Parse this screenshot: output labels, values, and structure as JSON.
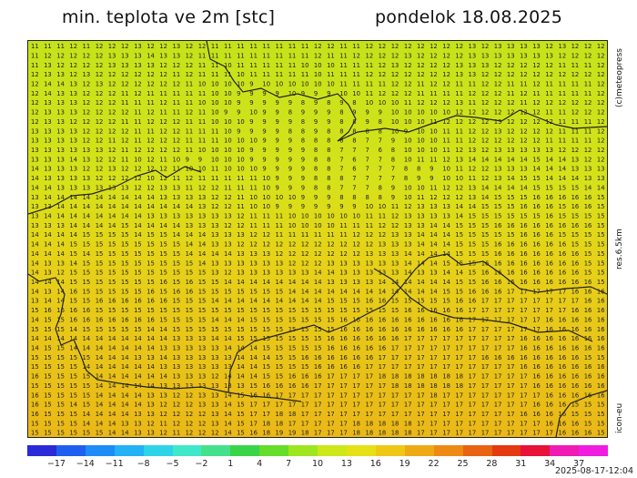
{
  "header": {
    "title_left": "min. teplota ve 2m [stc]",
    "title_right": "pondelok 18.08.2025"
  },
  "sidebar_labels": {
    "brand": "(c)meteopress",
    "resolution": "res.6.5km",
    "model": "icon-eu"
  },
  "timestamp": "2025-08-17-12:04",
  "legend": {
    "tick_labels": [
      "−17",
      "−14",
      "−11",
      "−8",
      "−5",
      "−2",
      "1",
      "4",
      "7",
      "10",
      "13",
      "16",
      "19",
      "22",
      "25",
      "28",
      "31",
      "34",
      "37"
    ],
    "colors": [
      "#2a2ad8",
      "#1f5fef",
      "#1e8cf7",
      "#22b2f5",
      "#2ed3e8",
      "#3fe8c8",
      "#44e08c",
      "#3ad44a",
      "#66dd2a",
      "#9ee61f",
      "#cce818",
      "#e6e016",
      "#eec815",
      "#eeaa14",
      "#ec8a13",
      "#e86412",
      "#e43a12",
      "#e81238",
      "#ee1cb4",
      "#f01ce0"
    ]
  },
  "map": {
    "grid_values": [
      "11 11 11 12 11 12 12 12 13 12 12 13 12 12 11 11 11 11 11 11 11 11 12 12 11 11 12 12 12 12 12 12 12 12 13 12 13 13 13 13 12 13 12 12 12",
      "11 12 12 12 12 12 13 13 13 14 13 13 12 11 11 11 11 11 11 11 11 11 12 11 11 12 12 12 12 13 12 12 12 12 13 13 13 13 13 13 13 12 12 12 12",
      "11 13 12 12 12 12 13 13 13 13 12 12 12 11 11 10 11 11 11 11 11 10 10 10 11 11 11 12 13 12 12 12 12 13 13 13 12 12 12 12 12 11 11 11 12",
      "12 13 13 12 13 12 12 12 12 12 12 11 12 11 11 11 10 11 11 11 11 11 10 11 11 11 12 12 12 12 12 12 12 13 13 12 12 12 12 12 12 12 12 12 12",
      "12 14 14 13 12 13 12 12 12 12 12 12 11 10 10 10 10 9 10 10 10 10 10 10 11 11 11 11 12 12 11 12 12 11 11 12 12 11 11 12 11 11 11 11 12",
      "12 14 13 13 12 12 12 11 12 11 11 11 11 11 10 10 9 9 9 9 10 9 9 9 10 10 11 12 12 12 11 11 11 11 12 12 12 11 12 11 11 11 11 11 12",
      "12 13 13 13 12 12 12 11 11 11 12 11 11 10 10 10 9 9 9 9 9 8 9 8 9 8 10 10 10 11 12 12 12 13 11 12 12 12 11 12 12 12 12 12 12",
      "12 13 13 13 12 12 12 12 11 12 11 11 12 11 10 9 9 10 9 9 8 9 9 9 8 9 9 9 10 10 10 10 10 12 12 12 12 12 12 12 11 11 12 12 12",
      "12 13 13 12 12 12 12 11 11 12 12 12 11 11 10 10 10 9 9 9 9 8 9 9 8 8 9 8 10 10 10 11 12 12 12 12 13 12 12 12 12 11 11 11 12",
      "13 13 13 13 12 12 12 12 11 11 12 12 11 11 11 10 9 9 9 9 8 8 9 8 8 8 8 8 10 9 10 10 11 11 12 12 13 12 12 12 12 11 11 11 12",
      "13 13 13 13 12 12 11 12 11 12 12 12 11 11 11 10 10 10 9 9 9 8 8 8 8 8 7 7 9 10 10 10 11 11 12 12 12 12 12 12 11 11 11 11 12",
      "13 13 13 13 13 13 12 11 12 12 12 12 11 10 10 10 10 9 9 9 9 9 8 8 7 7 7 6 8 10 10 10 11 12 13 12 13 13 13 13 13 12 12 12 12",
      "13 13 13 14 13 12 12 11 10 12 11 10 9 9 10 10 10 9 9 9 9 9 8 8 7 6 7 7 8 10 11 11 12 13 14 14 14 14 14 15 14 14 13 12 12",
      "14 13 13 13 12 12 13 12 12 12 12 11 10 10 11 10 10 10 9 9 9 9 8 8 7 6 7 7 7 8 8 9 10 11 12 12 13 13 13 14 14 14 13 13 13",
      "14 13 13 13 13 12 12 12 12 10 12 11 12 11 11 11 11 11 10 9 9 9 8 8 8 7 7 7 7 8 9 9 10 10 11 12 13 14 15 15 14 14 14 13 13",
      "14 14 13 13 13 13 13 13 12 12 13 13 11 12 12 11 11 11 10 9 9 9 8 8 7 7 7 8 9 10 10 11 12 12 13 14 14 14 14 15 15 15 15 14 14",
      "13 14 14 14 14 14 14 14 14 14 13 13 13 13 12 12 11 10 10 10 10 9 9 9 8 8 8 8 9 10 11 12 12 12 13 14 15 15 15 16 16 16 16 16 15",
      "13 13 14 14 14 14 14 14 14 14 14 14 14 13 12 12 11 10 10 9 9 9 9 9 9 9 10 10 11 12 13 13 13 14 14 15 15 15 16 16 16 15 16 16 15",
      "13 14 14 14 14 14 14 14 14 13 13 13 13 13 13 13 12 11 11 11 10 10 10 10 10 10 11 11 12 13 13 13 13 14 15 15 15 15 15 15 16 15 15 15 15",
      "13 13 13 14 14 14 14 15 14 14 14 14 13 13 13 12 12 11 11 11 10 10 10 10 11 11 11 12 12 13 13 14 14 15 15 15 16 16 16 16 16 16 16 16 15",
      "14 14 14 14 15 15 15 15 14 15 15 14 14 14 13 13 13 12 12 11 11 11 11 11 11 12 12 12 13 13 14 14 14 15 15 15 15 15 16 16 16 15 15 15 15",
      "14 14 14 15 15 15 15 15 15 15 15 15 14 14 13 13 12 12 12 12 12 12 12 12 12 12 12 13 13 13 14 14 14 15 15 15 16 16 16 16 16 16 15 15 15",
      "14 14 14 15 14 15 15 15 15 15 15 15 14 14 14 14 13 13 13 12 12 12 12 12 12 12 13 13 13 14 14 14 14 15 15 15 16 16 16 16 16 16 16 15 15",
      "14 13 13 14 15 15 15 15 15 15 15 15 15 14 13 13 13 13 13 13 12 12 12 13 13 13 13 13 13 14 14 14 15 15 15 16 16 16 16 16 16 16 16 15 15",
      "14 13 12 15 15 15 15 15 15 15 15 15 15 15 13 12 13 13 13 13 13 13 14 14 13 13 13 13 13 14 13 13 14 14 15 16 16 16 16 16 16 16 16 15 15",
      "14 14 14 15 15 15 15 15 15 15 16 15 16 15 15 14 14 14 14 14 14 14 14 13 13 13 13 14 14 14 14 14 14 15 15 16 16 16 16 16 16 16 16 16 15",
      "14 13 14 16 15 15 15 15 15 16 15 16 16 15 15 15 15 15 15 15 14 14 14 14 14 14 14 14 14 14 14 14 15 15 16 16 16 17 17 17 17 17 16 16 16",
      "13 14 14 15 15 16 16 16 16 16 16 15 15 15 14 14 14 14 14 14 14 14 14 15 15 15 16 16 15 15 15 15 15 16 16 17 17 17 17 17 17 17 17 16 16",
      "15 16 16 16 16 15 15 15 15 15 15 15 15 15 15 15 15 15 15 15 15 15 15 15 15 15 15 15 15 16 16 16 16 16 17 17 17 17 17 17 17 17 16 16 16",
      "14 15 15 16 16 16 16 16 16 16 15 15 15 15 14 14 14 15 15 15 15 15 15 15 16 16 16 16 16 16 16 16 16 16 17 17 17 17 17 17 16 16 16 16 16",
      "15 15 15 14 15 15 15 15 15 14 14 15 15 15 15 15 15 15 15 15 15 15 15 15 16 16 16 16 16 16 16 16 16 16 17 17 17 17 17 17 16 16 16 16 16",
      "14 14 14 14 14 14 14 14 14 14 14 13 13 13 14 14 15 15 15 15 15 15 15 16 16 16 16 16 16 17 17 17 17 17 17 17 17 17 16 16 16 16 16 16 16",
      "14 15 15 14 14 14 14 14 14 14 13 13 13 13 13 14 14 14 15 15 15 15 15 16 16 16 16 16 17 17 17 17 17 17 17 17 17 17 16 16 16 16 16 16 16",
      "15 15 15 15 15 14 14 14 13 13 14 13 13 13 13 13 14 14 14 15 15 16 16 16 16 16 16 17 17 17 17 17 17 17 17 16 16 16 16 16 16 16 16 15 15",
      "15 15 15 15 14 14 14 14 14 14 13 13 13 13 13 13 14 14 15 15 15 15 16 16 16 16 17 17 17 17 17 17 17 17 17 17 17 17 16 16 16 16 16 16 16",
      "16 15 15 15 15 14 14 14 14 14 14 13 13 13 12 14 14 14 15 15 16 16 16 17 17 17 17 18 18 18 18 18 18 18 17 17 17 17 17 16 16 16 16 16 16",
      "15 15 15 15 15 14 14 14 14 14 13 13 13 13 13 13 13 15 16 16 16 16 17 17 17 17 17 17 18 18 18 18 18 18 17 17 17 17 17 16 16 16 16 16 16",
      "16 15 15 15 15 14 14 14 14 13 13 12 12 13 13 14 15 16 16 17 17 17 17 17 17 17 17 17 17 17 17 18 17 17 17 17 17 17 17 17 16 16 16 16 16",
      "16 15 15 14 15 14 14 14 14 13 12 12 12 13 13 14 15 17 17 17 17 17 17 17 17 17 17 17 17 17 17 17 17 17 17 17 17 17 17 16 16 16 15 15 15",
      "16 15 15 15 14 14 14 14 13 13 12 12 12 12 13 14 15 17 17 18 18 17 17 17 17 17 17 17 17 17 17 17 17 17 17 17 17 17 16 16 16 16 15 15 15",
      "15 15 15 15 14 14 14 13 13 12 11 12 12 12 13 14 15 17 18 18 17 17 17 17 17 18 18 18 18 18 17 17 17 17 17 17 17 17 17 17 16 16 16 15 15",
      "15 15 15 15 15 15 14 14 13 13 12 11 12 12 12 14 15 16 18 19 19 18 17 17 17 18 18 18 18 18 17 17 17 17 17 17 17 17 17 17 17 16 16 16 15"
    ]
  }
}
